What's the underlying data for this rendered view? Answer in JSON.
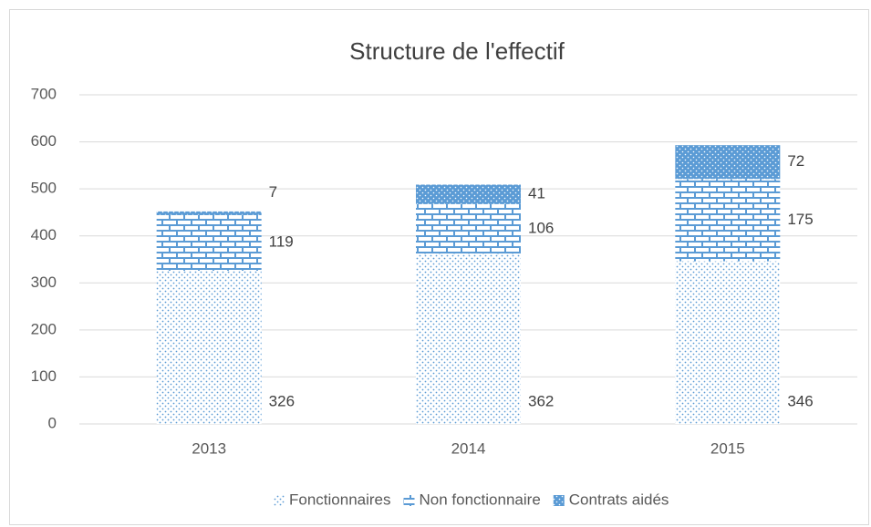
{
  "chart_data": {
    "type": "stacked_bar",
    "title": "Structure de l'effectif",
    "categories": [
      "2013",
      "2014",
      "2015"
    ],
    "series": [
      {
        "name": "Fonctionnaires",
        "color": "#5b9bd5",
        "values": [
          326,
          362,
          346
        ]
      },
      {
        "name": "Non fonctionnaire",
        "color": "#5b9bd5",
        "values": [
          119,
          106,
          175
        ]
      },
      {
        "name": "Contrats aidés",
        "color": "#5b9bd5",
        "values": [
          7,
          41,
          72
        ]
      }
    ],
    "ylim": [
      0,
      700
    ],
    "yticks": [
      0,
      100,
      200,
      300,
      400,
      500,
      600,
      700
    ],
    "grid": true,
    "legend": "bottom"
  }
}
